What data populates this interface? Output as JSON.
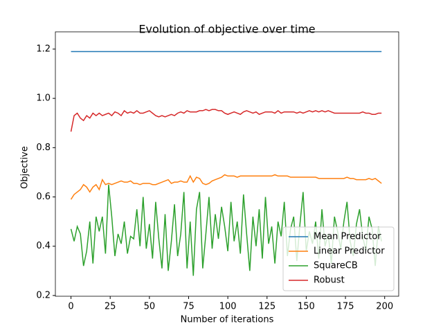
{
  "chart_data": {
    "type": "line",
    "title": "Evolution of objective over time",
    "xlabel": "Number of iterations",
    "ylabel": "Objective",
    "x": [
      0,
      2,
      4,
      6,
      8,
      10,
      12,
      14,
      16,
      18,
      20,
      22,
      24,
      26,
      28,
      30,
      32,
      34,
      36,
      38,
      40,
      42,
      44,
      46,
      48,
      50,
      52,
      54,
      56,
      58,
      60,
      62,
      64,
      66,
      68,
      70,
      72,
      74,
      76,
      78,
      80,
      82,
      84,
      86,
      88,
      90,
      92,
      94,
      96,
      98,
      100,
      102,
      104,
      106,
      108,
      110,
      112,
      114,
      116,
      118,
      120,
      122,
      124,
      126,
      128,
      130,
      132,
      134,
      136,
      138,
      140,
      142,
      144,
      146,
      148,
      150,
      152,
      154,
      156,
      158,
      160,
      162,
      164,
      166,
      168,
      170,
      172,
      174,
      176,
      178,
      180,
      182,
      184,
      186,
      188,
      190,
      192,
      194,
      196,
      198
    ],
    "series": [
      {
        "name": "Mean Predictor",
        "color": "#1f77b4",
        "values": [
          1.19,
          1.19,
          1.19,
          1.19,
          1.19,
          1.19,
          1.19,
          1.19,
          1.19,
          1.19,
          1.19,
          1.19,
          1.19,
          1.19,
          1.19,
          1.19,
          1.19,
          1.19,
          1.19,
          1.19,
          1.19,
          1.19,
          1.19,
          1.19,
          1.19,
          1.19,
          1.19,
          1.19,
          1.19,
          1.19,
          1.19,
          1.19,
          1.19,
          1.19,
          1.19,
          1.19,
          1.19,
          1.19,
          1.19,
          1.19,
          1.19,
          1.19,
          1.19,
          1.19,
          1.19,
          1.19,
          1.19,
          1.19,
          1.19,
          1.19,
          1.19,
          1.19,
          1.19,
          1.19,
          1.19,
          1.19,
          1.19,
          1.19,
          1.19,
          1.19,
          1.19,
          1.19,
          1.19,
          1.19,
          1.19,
          1.19,
          1.19,
          1.19,
          1.19,
          1.19,
          1.19,
          1.19,
          1.19,
          1.19,
          1.19,
          1.19,
          1.19,
          1.19,
          1.19,
          1.19,
          1.19,
          1.19,
          1.19,
          1.19,
          1.19,
          1.19,
          1.19,
          1.19,
          1.19,
          1.19,
          1.19,
          1.19,
          1.19,
          1.19,
          1.19,
          1.19,
          1.19,
          1.19,
          1.19,
          1.19
        ]
      },
      {
        "name": "Linear Predictor",
        "color": "#ff7f0e",
        "values": [
          0.59,
          0.61,
          0.62,
          0.63,
          0.65,
          0.64,
          0.62,
          0.64,
          0.65,
          0.63,
          0.67,
          0.65,
          0.655,
          0.65,
          0.655,
          0.66,
          0.665,
          0.66,
          0.66,
          0.665,
          0.655,
          0.655,
          0.65,
          0.655,
          0.655,
          0.655,
          0.65,
          0.65,
          0.655,
          0.66,
          0.665,
          0.67,
          0.655,
          0.66,
          0.66,
          0.665,
          0.66,
          0.66,
          0.685,
          0.66,
          0.68,
          0.675,
          0.655,
          0.65,
          0.655,
          0.665,
          0.67,
          0.675,
          0.68,
          0.69,
          0.685,
          0.685,
          0.685,
          0.68,
          0.685,
          0.685,
          0.685,
          0.685,
          0.685,
          0.685,
          0.685,
          0.685,
          0.685,
          0.685,
          0.685,
          0.69,
          0.685,
          0.685,
          0.685,
          0.685,
          0.68,
          0.68,
          0.68,
          0.68,
          0.68,
          0.68,
          0.68,
          0.68,
          0.68,
          0.675,
          0.675,
          0.675,
          0.675,
          0.675,
          0.675,
          0.675,
          0.675,
          0.675,
          0.68,
          0.675,
          0.675,
          0.67,
          0.67,
          0.67,
          0.67,
          0.675,
          0.67,
          0.675,
          0.665,
          0.655
        ]
      },
      {
        "name": "SquareCB",
        "color": "#2ca02c",
        "values": [
          0.47,
          0.42,
          0.48,
          0.45,
          0.32,
          0.38,
          0.5,
          0.33,
          0.52,
          0.46,
          0.52,
          0.37,
          0.65,
          0.52,
          0.36,
          0.45,
          0.41,
          0.5,
          0.37,
          0.44,
          0.43,
          0.55,
          0.4,
          0.6,
          0.39,
          0.49,
          0.35,
          0.58,
          0.43,
          0.31,
          0.53,
          0.3,
          0.42,
          0.57,
          0.36,
          0.45,
          0.62,
          0.31,
          0.5,
          0.28,
          0.55,
          0.62,
          0.31,
          0.45,
          0.6,
          0.39,
          0.53,
          0.43,
          0.56,
          0.48,
          0.38,
          0.58,
          0.42,
          0.5,
          0.37,
          0.61,
          0.45,
          0.3,
          0.52,
          0.4,
          0.55,
          0.35,
          0.6,
          0.41,
          0.48,
          0.33,
          0.5,
          0.44,
          0.58,
          0.36,
          0.47,
          0.52,
          0.34,
          0.49,
          0.62,
          0.38,
          0.46,
          0.41,
          0.5,
          0.35,
          0.55,
          0.4,
          0.45,
          0.33,
          0.52,
          0.46,
          0.39,
          0.5,
          0.58,
          0.42,
          0.36,
          0.49,
          0.55,
          0.44,
          0.38,
          0.52,
          0.47,
          0.32,
          0.48,
          0.42
        ]
      },
      {
        "name": "Robust",
        "color": "#d62728",
        "values": [
          0.865,
          0.93,
          0.94,
          0.92,
          0.91,
          0.93,
          0.92,
          0.94,
          0.93,
          0.94,
          0.93,
          0.935,
          0.94,
          0.93,
          0.945,
          0.94,
          0.93,
          0.95,
          0.94,
          0.945,
          0.94,
          0.95,
          0.94,
          0.94,
          0.945,
          0.95,
          0.94,
          0.93,
          0.925,
          0.93,
          0.925,
          0.93,
          0.935,
          0.93,
          0.94,
          0.945,
          0.94,
          0.95,
          0.945,
          0.945,
          0.945,
          0.95,
          0.95,
          0.955,
          0.95,
          0.955,
          0.955,
          0.95,
          0.95,
          0.94,
          0.935,
          0.94,
          0.945,
          0.94,
          0.935,
          0.945,
          0.95,
          0.945,
          0.94,
          0.945,
          0.935,
          0.94,
          0.945,
          0.945,
          0.945,
          0.94,
          0.95,
          0.94,
          0.945,
          0.945,
          0.945,
          0.945,
          0.94,
          0.945,
          0.94,
          0.945,
          0.95,
          0.945,
          0.95,
          0.945,
          0.95,
          0.945,
          0.95,
          0.945,
          0.94,
          0.94,
          0.94,
          0.94,
          0.94,
          0.94,
          0.94,
          0.94,
          0.94,
          0.945,
          0.94,
          0.94,
          0.935,
          0.935,
          0.94,
          0.94
        ]
      }
    ],
    "xlim": [
      -9.95,
      208.95
    ],
    "ylim": [
      0.197,
      1.27
    ],
    "xticks": [
      0,
      25,
      50,
      75,
      100,
      125,
      150,
      175,
      200
    ],
    "yticks": [
      0.2,
      0.4,
      0.6,
      0.8,
      {
        "value": 1,
        "label": "1.0"
      },
      1.2
    ],
    "grid": false,
    "legend": "lower right"
  }
}
